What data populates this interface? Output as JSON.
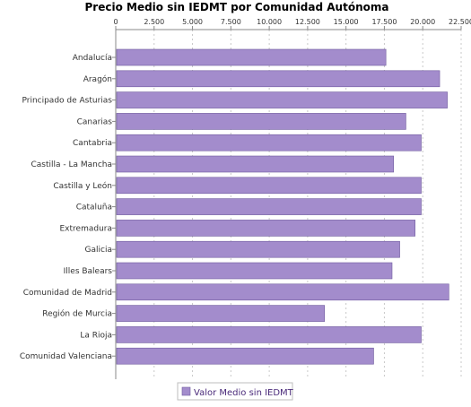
{
  "chart_data": {
    "type": "bar",
    "orientation": "horizontal",
    "title": "Precio Medio sin IEDMT por Comunidad Autónoma",
    "xlabel": "",
    "ylabel": "",
    "xlim": [
      0,
      22500
    ],
    "x_ticks": [
      "0",
      "2.500",
      "5.000",
      "7.500",
      "10.000",
      "12.500",
      "15.000",
      "17.500",
      "20.000",
      "22.500"
    ],
    "x_tick_values": [
      0,
      2500,
      5000,
      7500,
      10000,
      12500,
      15000,
      17500,
      20000,
      22500
    ],
    "categories": [
      "Andalucía",
      "Aragón",
      "Principado de Asturias",
      "Canarias",
      "Cantabria",
      "Castilla - La Mancha",
      "Castilla y León",
      "Cataluña",
      "Extremadura",
      "Galicia",
      "Illes Balears",
      "Comunidad de Madrid",
      "Región de Murcia",
      "La Rioja",
      "Comunidad Valenciana"
    ],
    "series": [
      {
        "name": "Valor Medio sin IEDMT",
        "color": "#a38ccc",
        "values": [
          17600,
          21100,
          21600,
          18900,
          19900,
          18100,
          19900,
          19900,
          19500,
          18500,
          18000,
          21700,
          13600,
          19900,
          16800
        ]
      }
    ],
    "grid": true,
    "axis_position": "top",
    "legend_position": "bottom"
  },
  "colors": {
    "bar_fill": "#a38ccc",
    "bar_stroke": "#6f5a9e",
    "grid": "#c8c8c8",
    "axis": "#888888",
    "legend_text": "#4a2a7a"
  }
}
